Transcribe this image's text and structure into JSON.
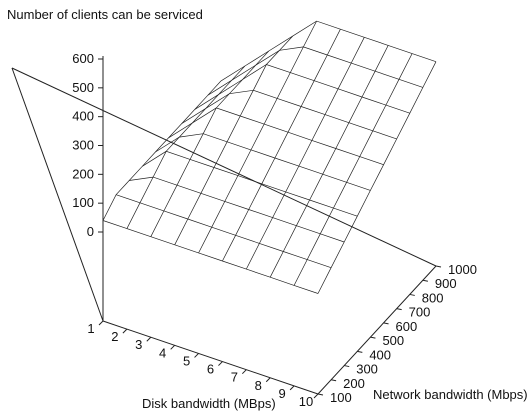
{
  "chart_data": {
    "type": "surface",
    "title": "Number of clients can be serviced",
    "xlabel": "Disk bandwidth (MBps)",
    "ylabel": "Network bandwidth (Mbps)",
    "zlabel": "",
    "x": [
      1,
      2,
      3,
      4,
      5,
      6,
      7,
      8,
      9,
      10
    ],
    "y": [
      100,
      200,
      300,
      400,
      500,
      600,
      700,
      800,
      900,
      1000
    ],
    "zlim": [
      0,
      600
    ],
    "z_ticks": [
      0,
      100,
      200,
      300,
      400,
      500,
      600
    ],
    "z_rows_by_network": [
      [
        40,
        40,
        40,
        40,
        40,
        40,
        40,
        40,
        40,
        40
      ],
      [
        80,
        80,
        80,
        80,
        80,
        80,
        80,
        80,
        80,
        80
      ],
      [
        80,
        120,
        120,
        120,
        120,
        120,
        120,
        120,
        120,
        120
      ],
      [
        80,
        160,
        160,
        160,
        160,
        160,
        160,
        160,
        160,
        160
      ],
      [
        80,
        160,
        200,
        200,
        200,
        200,
        200,
        200,
        200,
        200
      ],
      [
        80,
        160,
        240,
        240,
        240,
        240,
        240,
        240,
        240,
        240
      ],
      [
        80,
        160,
        240,
        280,
        280,
        280,
        280,
        280,
        280,
        280
      ],
      [
        80,
        160,
        240,
        320,
        320,
        320,
        320,
        320,
        320,
        320
      ],
      [
        80,
        160,
        240,
        320,
        360,
        360,
        360,
        360,
        360,
        360
      ],
      [
        80,
        160,
        240,
        320,
        400,
        400,
        400,
        400,
        400,
        400
      ]
    ],
    "grid": false,
    "legend": "none"
  }
}
